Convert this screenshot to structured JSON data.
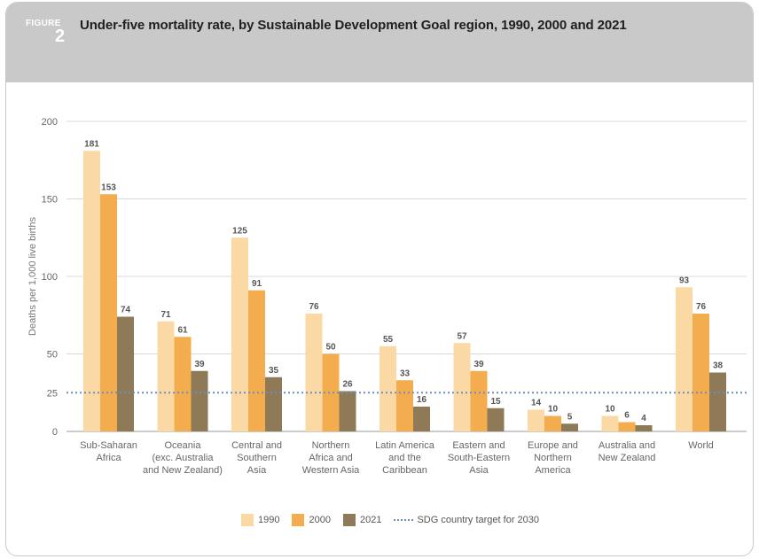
{
  "figure": {
    "label": "FIGURE",
    "number": "2"
  },
  "title": "Under-five mortality rate, by Sustainable Development Goal region, 1990, 2000 and 2021",
  "colors": {
    "1990": "#fbd9a5",
    "2000": "#f4ad4e",
    "2021": "#8f7a57",
    "target": "#6d8fc0",
    "header": "#c9c9c9"
  },
  "chart_data": {
    "type": "bar",
    "ylabel": "Deaths per 1,000 live births",
    "ylim": [
      0,
      200
    ],
    "yticks": [
      0,
      25,
      50,
      100,
      150,
      200
    ],
    "categories": [
      [
        "Sub-Saharan",
        "Africa"
      ],
      [
        "Oceania",
        "(exc. Australia",
        "and New Zealand)"
      ],
      [
        "Central and",
        "Southern",
        "Asia"
      ],
      [
        "Northern",
        "Africa and",
        "Western Asia"
      ],
      [
        "Latin America",
        "and the",
        "Caribbean"
      ],
      [
        "Eastern and",
        "South-Eastern",
        "Asia"
      ],
      [
        "Europe and",
        "Northern",
        "America"
      ],
      [
        "Australia and",
        "New Zealand"
      ],
      [
        "World"
      ]
    ],
    "series": [
      {
        "name": "1990",
        "values": [
          181,
          71,
          125,
          76,
          55,
          57,
          14,
          10,
          93
        ]
      },
      {
        "name": "2000",
        "values": [
          153,
          61,
          91,
          50,
          33,
          39,
          10,
          6,
          76
        ]
      },
      {
        "name": "2021",
        "values": [
          74,
          39,
          35,
          26,
          16,
          15,
          5,
          4,
          38
        ]
      }
    ],
    "reference_line": {
      "name": "SDG country target for 2030",
      "value": 25
    },
    "grid": true,
    "legend_position": "bottom"
  },
  "legend": [
    {
      "label": "1990"
    },
    {
      "label": "2000"
    },
    {
      "label": "2021"
    },
    {
      "label": "SDG country target for 2030"
    }
  ]
}
